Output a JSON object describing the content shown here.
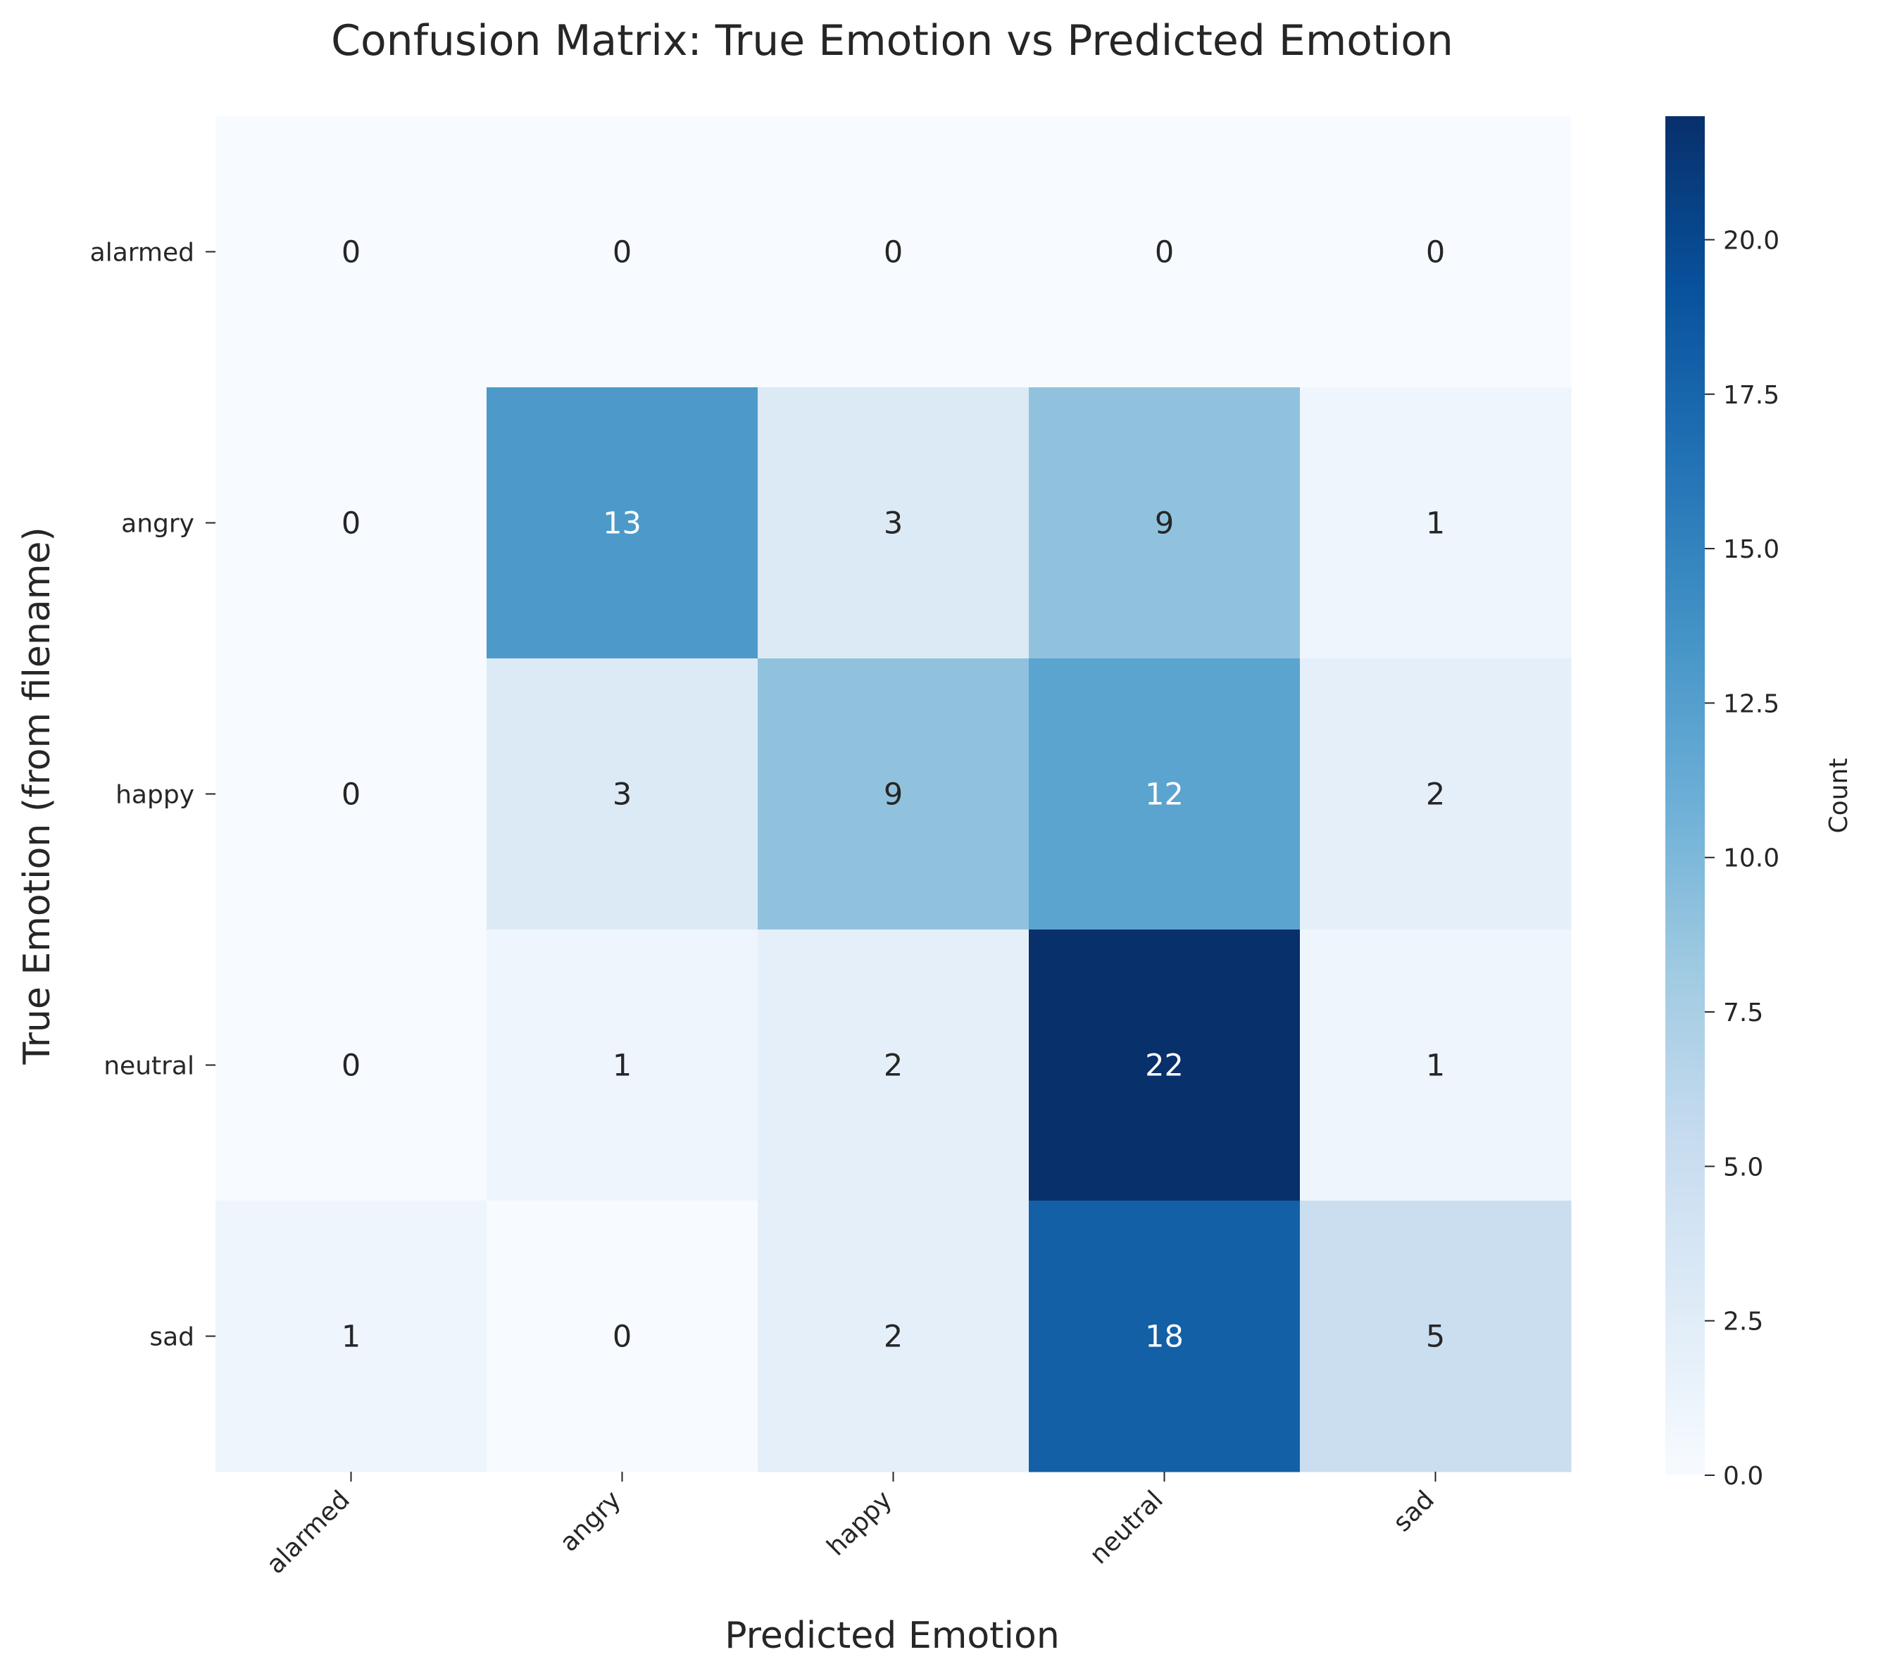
{
  "chart_data": {
    "type": "heatmap",
    "title": "Confusion Matrix: True Emotion vs Predicted Emotion",
    "xlabel": "Predicted Emotion",
    "ylabel": "True Emotion (from filename)",
    "x_categories": [
      "alarmed",
      "angry",
      "happy",
      "neutral",
      "sad"
    ],
    "y_categories": [
      "alarmed",
      "angry",
      "happy",
      "neutral",
      "sad"
    ],
    "values": [
      [
        0,
        0,
        0,
        0,
        0
      ],
      [
        0,
        13,
        3,
        9,
        1
      ],
      [
        0,
        3,
        9,
        12,
        2
      ],
      [
        0,
        1,
        2,
        22,
        1
      ],
      [
        1,
        0,
        2,
        18,
        5
      ]
    ],
    "colorbar": {
      "label": "Count",
      "min": 0,
      "max": 22,
      "ticks": [
        "0.0",
        "2.5",
        "5.0",
        "7.5",
        "10.0",
        "12.5",
        "15.0",
        "17.5",
        "20.0"
      ],
      "tick_values": [
        0,
        2.5,
        5,
        7.5,
        10,
        12.5,
        15,
        17.5,
        20
      ]
    },
    "colormap": "Blues",
    "colors": {
      "low": "#f7fbff",
      "high": "#08306b",
      "text_dark": "#262626",
      "text_light": "#ffffff"
    }
  }
}
